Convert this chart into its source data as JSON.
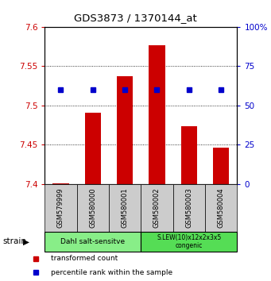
{
  "title": "GDS3873 / 1370144_at",
  "samples": [
    "GSM579999",
    "GSM580000",
    "GSM580001",
    "GSM580002",
    "GSM580003",
    "GSM580004"
  ],
  "bar_values": [
    7.401,
    7.491,
    7.537,
    7.576,
    7.474,
    7.446
  ],
  "bar_base": 7.4,
  "percentile_pct": [
    60,
    60,
    60,
    60,
    60,
    60
  ],
  "ylim": [
    7.4,
    7.6
  ],
  "yticks_left": [
    7.4,
    7.45,
    7.5,
    7.55,
    7.6
  ],
  "yticks_right": [
    0,
    25,
    50,
    75,
    100
  ],
  "yticks_right_labels": [
    "0",
    "25",
    "50",
    "75",
    "100%"
  ],
  "bar_color": "#cc0000",
  "dot_color": "#0000cc",
  "group1_label": "Dahl salt-sensitve",
  "group1_color": "#88ee88",
  "group2_label": "S.LEW(10)x12x2x3x5\ncongenic",
  "group2_color": "#55dd55",
  "sample_box_color": "#cccccc",
  "strain_label": "strain",
  "legend_red": "transformed count",
  "legend_blue": "percentile rank within the sample",
  "tick_color_left": "#cc0000",
  "tick_color_right": "#0000cc",
  "grid_dotted_at": [
    7.45,
    7.5,
    7.55
  ],
  "title_fontsize": 9.5
}
